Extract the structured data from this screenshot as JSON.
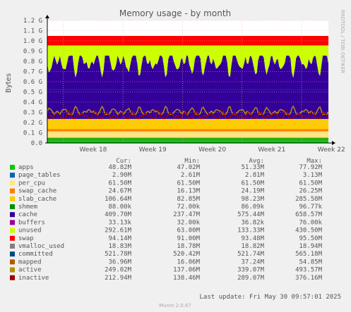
{
  "chart_data": {
    "type": "area",
    "title": "Memory usage - by month",
    "ylabel": "Bytes",
    "side_label": "RRDTOOL / TOBI OETIKER",
    "ylim": [
      0,
      1.2
    ],
    "yunit": "G",
    "yticks": [
      "0.0",
      "0.1 G",
      "0.2 G",
      "0.3 G",
      "0.4 G",
      "0.5 G",
      "0.6 G",
      "0.7 G",
      "0.8 G",
      "0.9 G",
      "1.0 G",
      "1.1 G",
      "1.2 G"
    ],
    "xticks": [
      "Week 18",
      "Week 19",
      "Week 20",
      "Week 21",
      "Week 22"
    ],
    "grid": true,
    "legend_header": [
      "Cur:",
      "Min:",
      "Avg:",
      "Max:"
    ],
    "series": [
      {
        "name": "apps",
        "color": "#00cc00",
        "cur": "48.82M",
        "min": "47.02M",
        "avg": "51.33M",
        "max": "77.92M"
      },
      {
        "name": "page_tables",
        "color": "#0066b3",
        "cur": "2.90M",
        "min": "2.61M",
        "avg": "2.81M",
        "max": "3.13M"
      },
      {
        "name": "per_cpu",
        "color": "#ffe680",
        "cur": "61.50M",
        "min": "61.50M",
        "avg": "61.50M",
        "max": "61.50M"
      },
      {
        "name": "swap_cache",
        "color": "#ff8000",
        "cur": "24.67M",
        "min": "16.13M",
        "avg": "24.19M",
        "max": "26.25M"
      },
      {
        "name": "slab_cache",
        "color": "#ffcc00",
        "cur": "106.64M",
        "min": "82.85M",
        "avg": "98.23M",
        "max": "285.58M"
      },
      {
        "name": "shmem",
        "color": "#008f00",
        "cur": "88.00k",
        "min": "72.00k",
        "avg": "86.09k",
        "max": "96.77k"
      },
      {
        "name": "cache",
        "color": "#330099",
        "cur": "409.70M",
        "min": "237.47M",
        "avg": "575.44M",
        "max": "658.57M"
      },
      {
        "name": "buffers",
        "color": "#990099",
        "cur": "33.13k",
        "min": "32.00k",
        "avg": "36.82k",
        "max": "76.00k"
      },
      {
        "name": "unused",
        "color": "#ccff00",
        "cur": "292.61M",
        "min": "63.00M",
        "avg": "133.33M",
        "max": "430.50M"
      },
      {
        "name": "swap",
        "color": "#ff0000",
        "cur": "94.14M",
        "min": "91.00M",
        "avg": "93.48M",
        "max": "95.50M"
      },
      {
        "name": "vmalloc_used",
        "color": "#808080",
        "cur": "18.83M",
        "min": "18.78M",
        "avg": "18.82M",
        "max": "18.94M"
      },
      {
        "name": "committed",
        "color": "#00487d",
        "cur": "521.78M",
        "min": "520.42M",
        "avg": "521.74M",
        "max": "565.18M"
      },
      {
        "name": "mapped",
        "color": "#b35a00",
        "cur": "36.96M",
        "min": "16.06M",
        "avg": "37.24M",
        "max": "54.85M"
      },
      {
        "name": "active",
        "color": "#b38f00",
        "cur": "249.02M",
        "min": "137.06M",
        "avg": "339.07M",
        "max": "493.57M"
      },
      {
        "name": "inactive",
        "color": "#a00000",
        "cur": "212.94M",
        "min": "138.46M",
        "avg": "289.07M",
        "max": "376.16M"
      }
    ],
    "last_update": "Last update:  Fri May 30 09:57:01 2025",
    "footer": "Munin 2.0.67"
  }
}
